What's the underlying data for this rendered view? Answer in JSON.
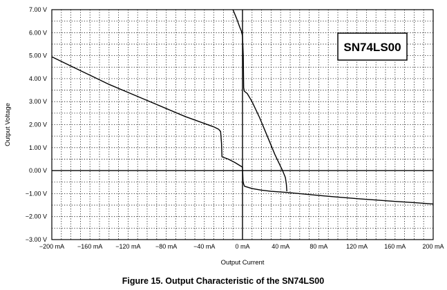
{
  "chart_data": {
    "type": "line",
    "title": "Figure 15. Output Characteristic of the SN74LS00",
    "xlabel": "Output Current",
    "ylabel": "Output Voltage",
    "xlim": [
      -200,
      200
    ],
    "ylim": [
      -3,
      7
    ],
    "x_unit": "mA",
    "y_unit": "V",
    "x_ticks": [
      -200,
      -160,
      -120,
      -80,
      -40,
      0,
      40,
      80,
      120,
      160,
      200
    ],
    "y_ticks": [
      -3,
      -2,
      -1,
      0,
      1,
      2,
      3,
      4,
      5,
      6,
      7
    ],
    "x_tick_labels": [
      "−200 mA",
      "−160 mA",
      "−120 mA",
      "−80 mA",
      "−40 mA",
      "0 mA",
      "40 mA",
      "80 mA",
      "120 mA",
      "160 mA",
      "200 mA"
    ],
    "y_tick_labels": [
      "−3.00 V",
      "−2.00 V",
      "−1.00 V",
      "0.00 V",
      "1.00 V",
      "2.00 V",
      "3.00 V",
      "4.00 V",
      "5.00 V",
      "6.00 V",
      "7.00 V"
    ],
    "grid": true,
    "annotation": "SN74LS00",
    "series": [
      {
        "points": [
          [
            -200,
            4.95
          ],
          [
            -180,
            4.55
          ],
          [
            -160,
            4.15
          ],
          [
            -140,
            3.75
          ],
          [
            -120,
            3.4
          ],
          [
            -100,
            3.05
          ],
          [
            -80,
            2.7
          ],
          [
            -60,
            2.35
          ],
          [
            -40,
            2.05
          ],
          [
            -30,
            1.9
          ],
          [
            -25,
            1.8
          ],
          [
            -23,
            1.7
          ],
          [
            -22,
            1.2
          ],
          [
            -21.5,
            0.6
          ],
          [
            -15,
            0.5
          ],
          [
            -8,
            0.35
          ],
          [
            -2,
            0.2
          ],
          [
            0,
            0.15
          ]
        ]
      },
      {
        "points": [
          [
            -10,
            7.0
          ],
          [
            -6,
            6.6
          ],
          [
            -3,
            6.25
          ],
          [
            -1,
            6.05
          ],
          [
            0,
            5.85
          ]
        ]
      },
      {
        "points": [
          [
            0,
            5.85
          ],
          [
            0.8,
            5.0
          ],
          [
            1.2,
            3.6
          ],
          [
            2,
            3.45
          ],
          [
            5,
            3.35
          ],
          [
            10,
            3.0
          ],
          [
            18,
            2.3
          ],
          [
            26,
            1.5
          ],
          [
            34,
            0.7
          ],
          [
            42,
            0.0
          ],
          [
            45,
            -0.3
          ],
          [
            46,
            -0.6
          ],
          [
            46.5,
            -0.9
          ]
        ]
      },
      {
        "points": [
          [
            0,
            0.15
          ],
          [
            0.6,
            -0.5
          ],
          [
            2,
            -0.68
          ],
          [
            10,
            -0.78
          ],
          [
            20,
            -0.85
          ],
          [
            30,
            -0.9
          ],
          [
            46.5,
            -0.95
          ],
          [
            60,
            -1.0
          ],
          [
            80,
            -1.08
          ],
          [
            100,
            -1.15
          ],
          [
            120,
            -1.22
          ],
          [
            140,
            -1.28
          ],
          [
            160,
            -1.34
          ],
          [
            180,
            -1.39
          ],
          [
            200,
            -1.45
          ]
        ]
      }
    ]
  }
}
